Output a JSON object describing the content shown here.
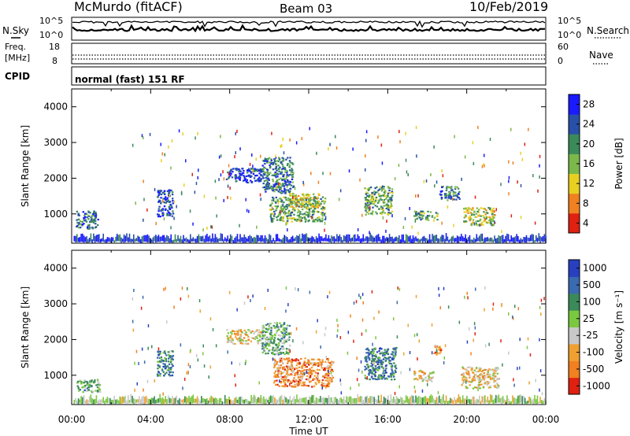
{
  "header": {
    "station": "McMurdo (fitACF)",
    "beam": "Beam 03",
    "date": "10/Feb/2019"
  },
  "panels": {
    "noise": {
      "left_label": "N.Sky",
      "left_ticks": [
        "10^5",
        "10^0"
      ],
      "right_label": "N.Search",
      "right_ticks": [
        "10^5",
        "10^0"
      ]
    },
    "freq": {
      "left_label_1": "Freq.",
      "left_label_2": "[MHz]",
      "left_ticks": [
        "18",
        "8"
      ],
      "right_label": "Nave",
      "right_ticks": [
        "60",
        "0"
      ]
    },
    "cpid": {
      "label": "CPID",
      "text": "normal (fast) 151 RF"
    }
  },
  "chart_data": [
    {
      "type": "heatmap",
      "name": "Power",
      "ylabel": "Slant Range [km]",
      "yticks": [
        "1000",
        "2000",
        "3000",
        "4000"
      ],
      "ylim": [
        180,
        4500
      ],
      "xlim": [
        0,
        24
      ],
      "colorbar_label": "Power [dB]",
      "colorbar_ticks": [
        "4",
        "8",
        "12",
        "16",
        "20",
        "24",
        "28"
      ],
      "colorbar_colors": [
        "#1a1aff",
        "#2850a8",
        "#3a8a5a",
        "#7ab84a",
        "#e8d020",
        "#f08020",
        "#e02010"
      ],
      "echo_regions": [
        {
          "t0": 0.2,
          "t1": 1.3,
          "r0": 600,
          "r1": 1100,
          "level": 2
        },
        {
          "t0": 4.3,
          "t1": 5.1,
          "r0": 950,
          "r1": 1700,
          "level": 1
        },
        {
          "t0": 7.8,
          "t1": 9.6,
          "r0": 1900,
          "r1": 2300,
          "level": 1
        },
        {
          "t0": 9.6,
          "t1": 11.2,
          "r0": 1600,
          "r1": 2600,
          "level": 2
        },
        {
          "t0": 10.0,
          "t1": 12.8,
          "r0": 800,
          "r1": 1500,
          "level": 3
        },
        {
          "t0": 11.0,
          "t1": 12.5,
          "r0": 1200,
          "r1": 1600,
          "level": 4
        },
        {
          "t0": 14.8,
          "t1": 16.2,
          "r0": 1000,
          "r1": 1800,
          "level": 3
        },
        {
          "t0": 17.3,
          "t1": 18.5,
          "r0": 850,
          "r1": 1100,
          "level": 3
        },
        {
          "t0": 18.6,
          "t1": 19.6,
          "r0": 1400,
          "r1": 1800,
          "level": 2
        },
        {
          "t0": 19.8,
          "t1": 21.4,
          "r0": 700,
          "r1": 1200,
          "level": 4
        }
      ],
      "ground_band": {
        "r0": 180,
        "r1": 420,
        "level": 1
      }
    },
    {
      "type": "heatmap",
      "name": "Velocity",
      "ylabel": "Slant Range [km]",
      "yticks": [
        "1000",
        "2000",
        "3000",
        "4000"
      ],
      "ylim": [
        180,
        4500
      ],
      "xlim": [
        0,
        24
      ],
      "colorbar_label": "Velocity [m s⁻¹]",
      "colorbar_ticks": [
        "1000",
        "500",
        "100",
        "25",
        "-25",
        "-100",
        "-500",
        "-1000"
      ],
      "colorbar_colors": [
        "#2840c0",
        "#3a6ab0",
        "#3a8a5a",
        "#7ac840",
        "#c8c8c8",
        "#f0a030",
        "#f08020",
        "#e02010"
      ],
      "echo_regions": [
        {
          "t0": 0.2,
          "t1": 1.4,
          "r0": 550,
          "r1": 900,
          "level": 3
        },
        {
          "t0": 4.3,
          "t1": 5.1,
          "r0": 1000,
          "r1": 1700,
          "level": 2
        },
        {
          "t0": 7.8,
          "t1": 9.6,
          "r0": 1900,
          "r1": 2300,
          "level": 5
        },
        {
          "t0": 9.6,
          "t1": 11.0,
          "r0": 1600,
          "r1": 2500,
          "level": 3
        },
        {
          "t0": 10.2,
          "t1": 13.2,
          "r0": 700,
          "r1": 1500,
          "level": 6
        },
        {
          "t0": 14.8,
          "t1": 16.4,
          "r0": 900,
          "r1": 1800,
          "level": 2
        },
        {
          "t0": 17.3,
          "t1": 18.3,
          "r0": 850,
          "r1": 1150,
          "level": 5
        },
        {
          "t0": 18.3,
          "t1": 18.7,
          "r0": 1600,
          "r1": 1900,
          "level": 6
        },
        {
          "t0": 19.7,
          "t1": 21.6,
          "r0": 650,
          "r1": 1250,
          "level": 5
        }
      ],
      "ground_band": {
        "r0": 180,
        "r1": 420,
        "level": 4
      }
    }
  ],
  "time_axis": {
    "ticks": [
      "00:00",
      "04:00",
      "08:00",
      "12:00",
      "16:00",
      "20:00",
      "00:00"
    ],
    "label": "Time UT"
  }
}
